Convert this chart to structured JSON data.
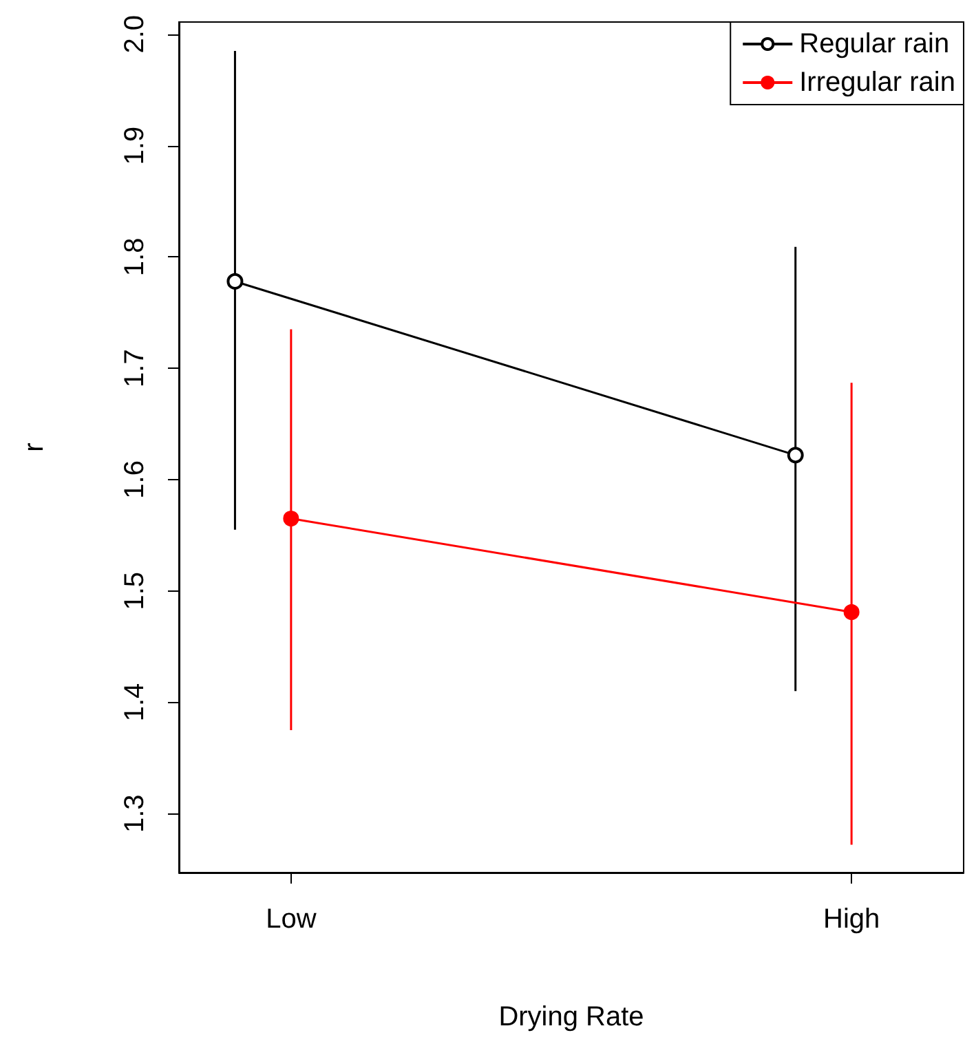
{
  "chart_data": {
    "type": "line",
    "xlabel": "Drying Rate",
    "ylabel": "r",
    "categories": [
      "Low",
      "High"
    ],
    "series": [
      {
        "name": "Regular rain",
        "color": "#000000",
        "values": [
          1.778,
          1.622
        ],
        "errors": [
          [
            1.555,
            1.985
          ],
          [
            1.41,
            1.809
          ]
        ]
      },
      {
        "name": "Irregular rain",
        "color": "#ff0000",
        "values": [
          1.565,
          1.481
        ],
        "errors": [
          [
            1.375,
            1.735
          ],
          [
            1.272,
            1.687
          ]
        ]
      }
    ],
    "ylim": [
      1.247,
      2.011
    ],
    "yticks": [
      1.3,
      1.4,
      1.5,
      1.6,
      1.7,
      1.8,
      1.9,
      {
        "value": 2.0,
        "label": "2.0"
      }
    ],
    "grid": false,
    "legend": "top right",
    "marker": "circle",
    "line_style": "solid"
  }
}
